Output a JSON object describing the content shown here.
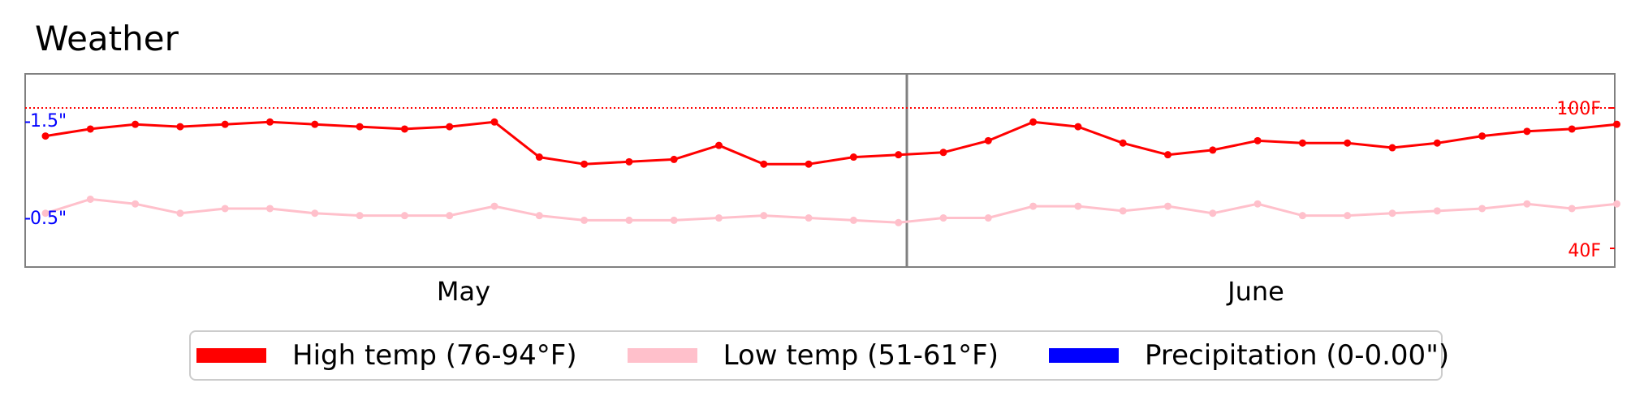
{
  "chart_data": {
    "type": "line",
    "title": "Weather",
    "x_labels": [
      "May",
      "June"
    ],
    "temp_axis": {
      "range": [
        40,
        100
      ],
      "ticks": [
        "40F",
        "100F"
      ],
      "color": "#ff0000"
    },
    "precip_axis": {
      "range": [
        0,
        2.0
      ],
      "ticks": [
        "0.5\"",
        "1.5\""
      ],
      "color": "#0000ff"
    },
    "reference_line": {
      "value": 100,
      "style": "dotted",
      "color": "#ff0000"
    },
    "series": [
      {
        "name": "High temp (76-94°F)",
        "color": "#ff0000",
        "values": [
          88,
          91,
          93,
          92,
          93,
          94,
          93,
          92,
          91,
          92,
          94,
          79,
          76,
          77,
          78,
          84,
          76,
          76,
          79,
          80,
          81,
          86,
          94,
          92,
          85,
          80,
          82,
          86,
          85,
          85,
          83,
          85,
          88,
          90,
          91,
          93
        ]
      },
      {
        "name": "Low temp (51-61°F)",
        "color": "#ffc0cb",
        "values": [
          55,
          61,
          59,
          55,
          57,
          57,
          55,
          54,
          54,
          54,
          58,
          54,
          52,
          52,
          52,
          53,
          54,
          53,
          52,
          51,
          53,
          53,
          58,
          58,
          56,
          58,
          55,
          59,
          54,
          54,
          55,
          56,
          57,
          59,
          57,
          59
        ]
      },
      {
        "name": "Precipitation (0-0.00\")",
        "color": "#0000ff",
        "values": []
      }
    ]
  }
}
